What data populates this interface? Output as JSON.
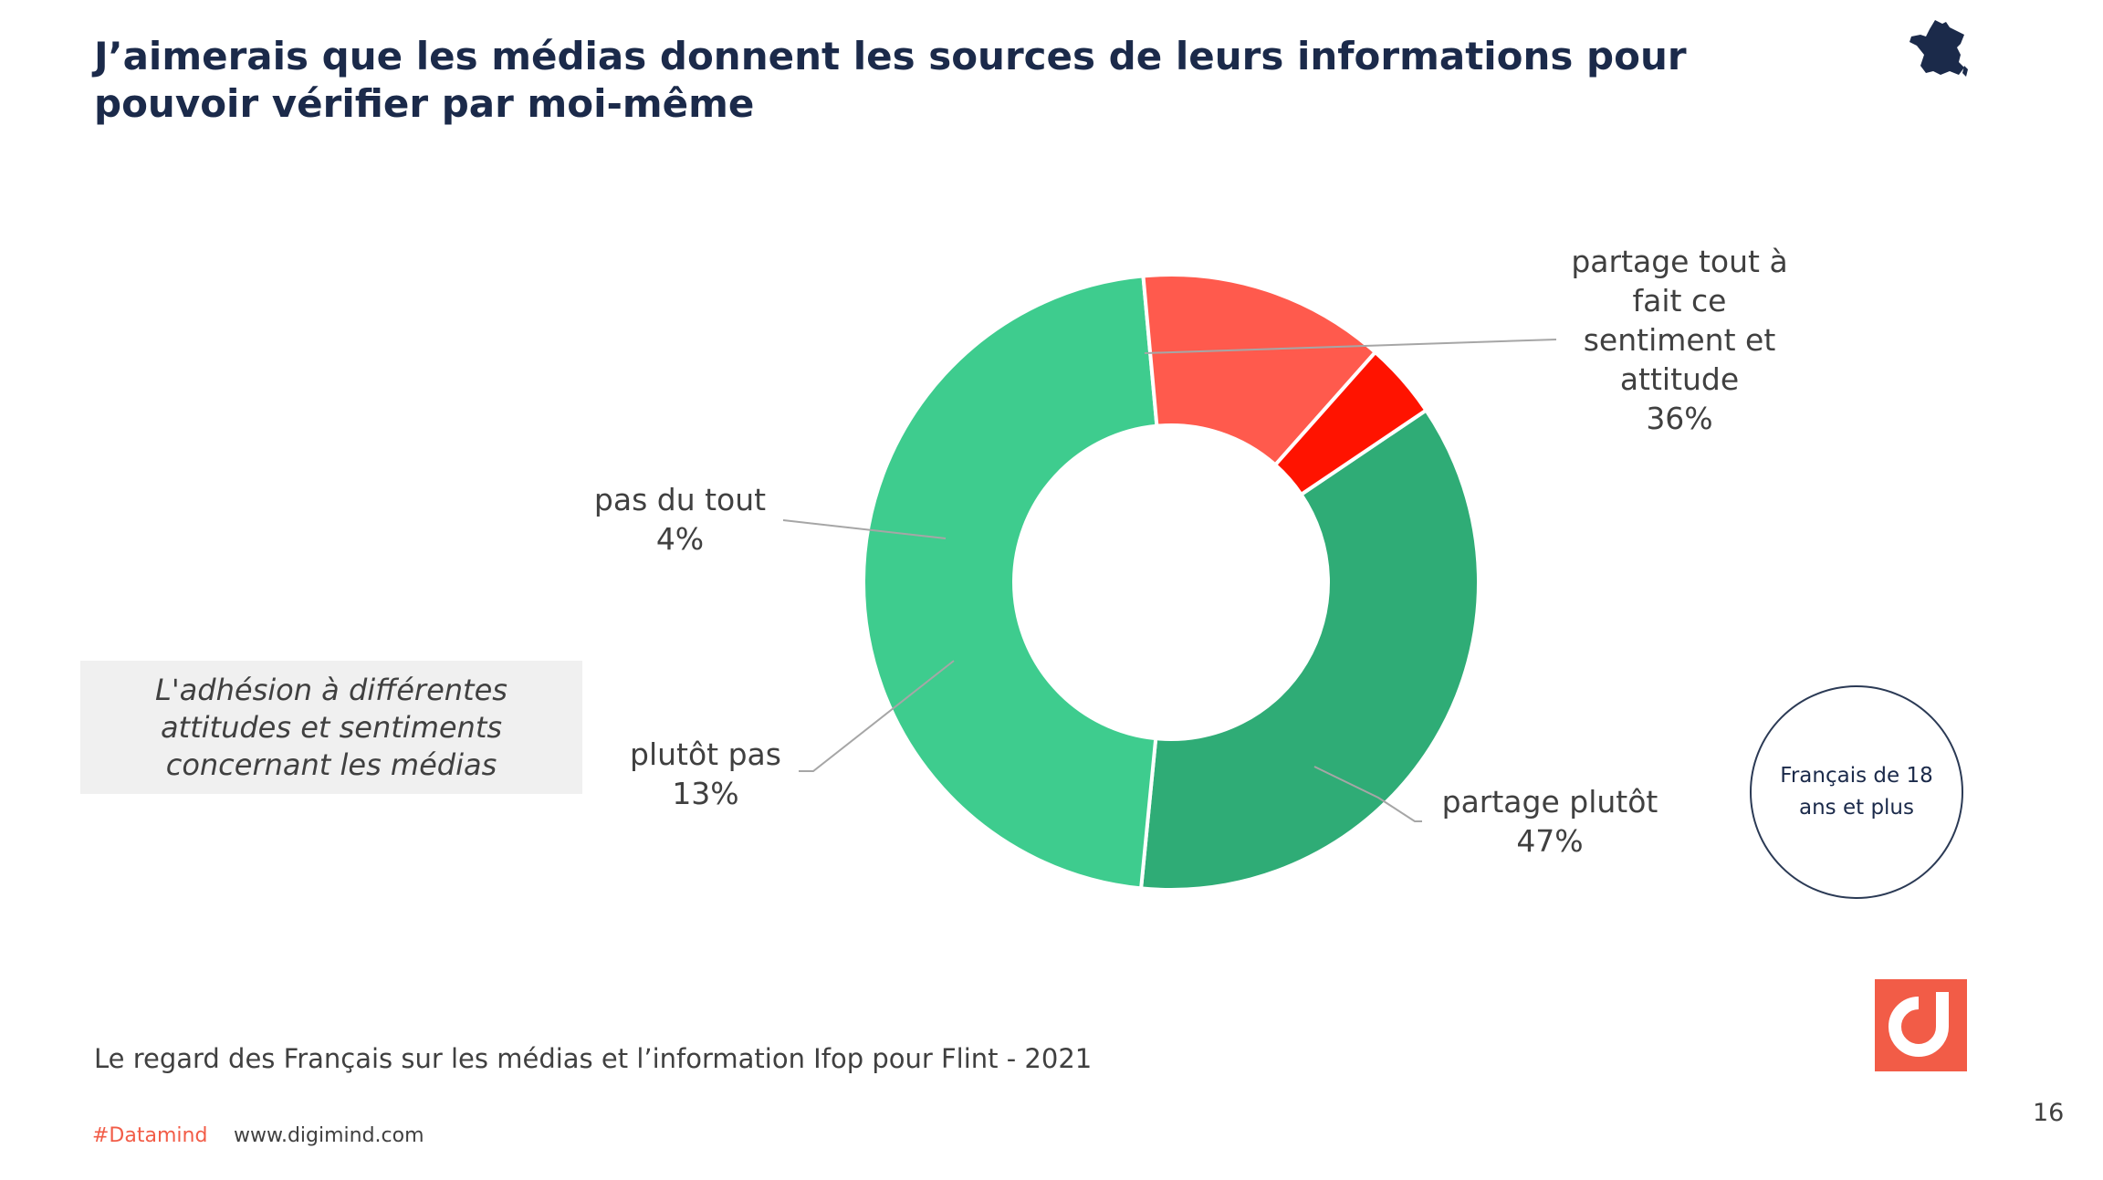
{
  "title": "J’aimerais que les médias donnent les sources de leurs informations pour pouvoir vérifier par moi-même",
  "note": "L'adhésion à différentes attitudes et sentiments concernant les médias",
  "population": "Français de 18 ans et plus",
  "source": "Le regard des Français sur les médias et l’information  Ifop pour Flint - 2021",
  "page_number": "16",
  "footer": {
    "hashtag": "#Datamind",
    "website": "www.digimind.com"
  },
  "icons": {
    "country": "france-map-icon",
    "brand": "digimind-logo-icon"
  },
  "colors": {
    "title": "#1b2a4a",
    "accent": "#f25c47"
  },
  "chart_data": {
    "type": "pie",
    "donut": true,
    "series": [
      {
        "label_lines": [
          "partage tout à",
          "fait ce",
          "sentiment et",
          "attitude"
        ],
        "value": 36,
        "value_label": "36%",
        "color": "#2fac76"
      },
      {
        "label_lines": [
          "partage plutôt"
        ],
        "value": 47,
        "value_label": "47%",
        "color": "#3ecc8e"
      },
      {
        "label_lines": [
          "plutôt pas"
        ],
        "value": 13,
        "value_label": "13%",
        "color": "#ff5a4d"
      },
      {
        "label_lines": [
          "pas du tout"
        ],
        "value": 4,
        "value_label": "4%",
        "color": "#ff1300"
      }
    ]
  }
}
